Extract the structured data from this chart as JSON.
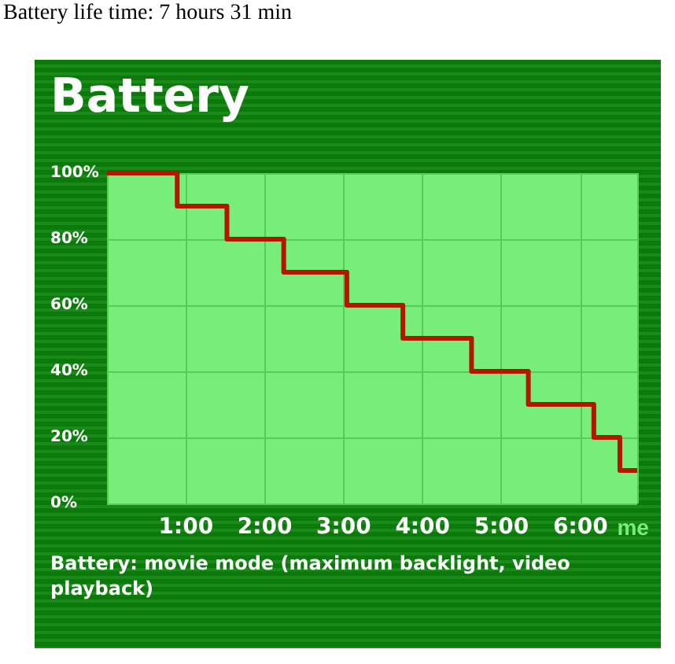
{
  "chart_data": {
    "type": "step",
    "title": "Battery",
    "subtitle": "Battery: movie mode (maximum backlight, video playback)",
    "annotations": [
      "Battery life time: 7 hours 31 min"
    ],
    "xlabel": "me",
    "x": [
      0,
      0.89,
      1.52,
      2.24,
      3.04,
      3.75,
      4.62,
      5.34,
      6.17,
      6.5,
      6.72
    ],
    "values": [
      100,
      90,
      80,
      70,
      60,
      50,
      40,
      30,
      20,
      10,
      10
    ],
    "color": "#b01800",
    "xlim": [
      0,
      6.72
    ],
    "xticks": [
      {
        "value": 1,
        "label": "1:00"
      },
      {
        "value": 2,
        "label": "2:00"
      },
      {
        "value": 3,
        "label": "3:00"
      },
      {
        "value": 4,
        "label": "4:00"
      },
      {
        "value": 5,
        "label": "5:00"
      },
      {
        "value": 6,
        "label": "6:00"
      }
    ],
    "ylim": [
      0,
      100
    ],
    "yticks": [
      {
        "value": 0,
        "label": "0%"
      },
      {
        "value": 20,
        "label": "20%"
      },
      {
        "value": 40,
        "label": "40%"
      },
      {
        "value": 60,
        "label": "60%"
      },
      {
        "value": 80,
        "label": "80%"
      },
      {
        "value": 100,
        "label": "100%"
      }
    ],
    "grid": true
  }
}
